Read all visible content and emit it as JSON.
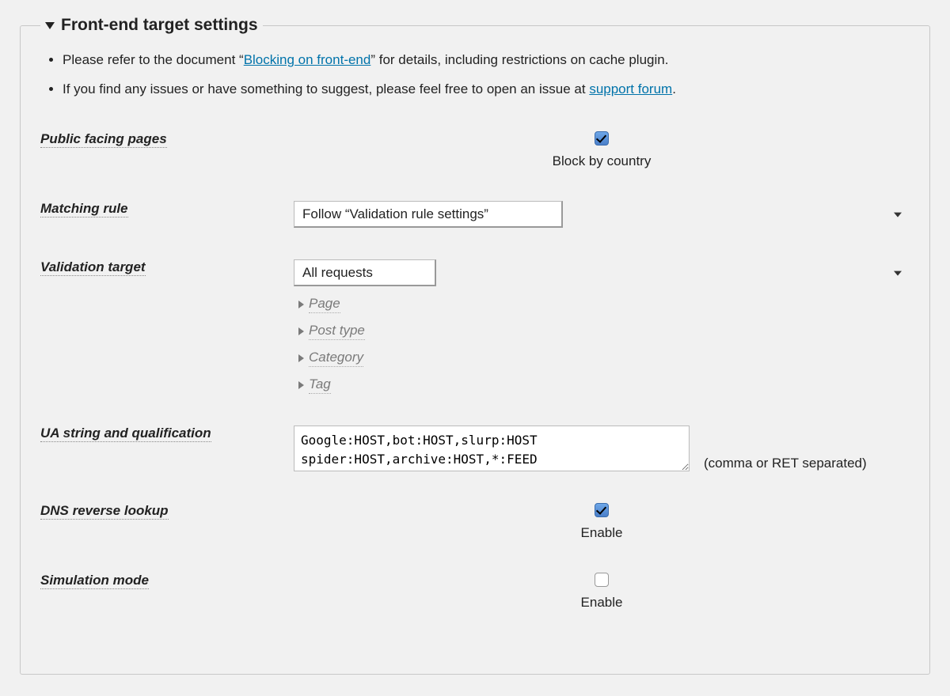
{
  "section": {
    "title": "Front-end target settings"
  },
  "notes": {
    "n1_pre": "Please refer to the document “",
    "n1_link": "Blocking on front-end",
    "n1_post": "” for details, including restrictions on cache plugin.",
    "n2_pre": "If you find any issues or have something to suggest, please feel free to open an issue at ",
    "n2_link": "support forum",
    "n2_post": "."
  },
  "rows": {
    "public_pages": {
      "label": "Public facing pages",
      "checkbox_label": "Block by country",
      "checked": true
    },
    "matching_rule": {
      "label": "Matching rule",
      "selected": "Follow “Validation rule settings”"
    },
    "validation_target": {
      "label": "Validation target",
      "selected": "All requests",
      "subs": {
        "page": "Page",
        "post_type": "Post type",
        "category": "Category",
        "tag": "Tag"
      }
    },
    "ua": {
      "label": "UA string and qualification",
      "value": "Google:HOST,bot:HOST,slurp:HOST\nspider:HOST,archive:HOST,*:FEED",
      "hint": "(comma or RET separated)"
    },
    "dns": {
      "label": "DNS reverse lookup",
      "checkbox_label": "Enable",
      "checked": true
    },
    "sim": {
      "label": "Simulation mode",
      "checkbox_label": "Enable",
      "checked": false
    }
  },
  "colors": {
    "link": "#0073aa",
    "bg": "#f1f1f1",
    "border": "#c8c8c8"
  }
}
